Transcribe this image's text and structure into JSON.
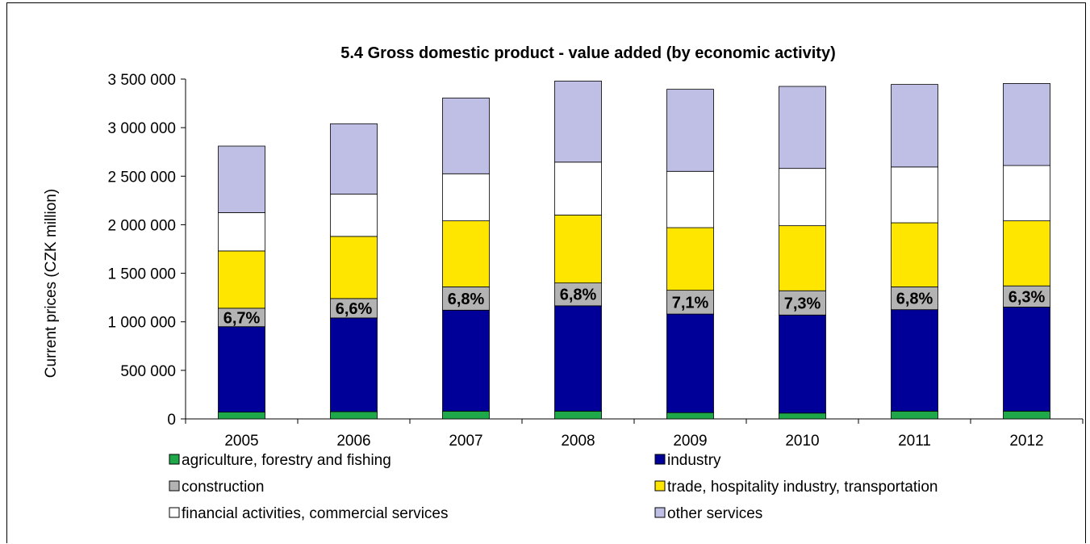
{
  "chart_data": {
    "type": "bar",
    "stacked": true,
    "title": "5.4 Gross domestic product - value added (by economic activity)",
    "ylabel": "Current prices (CZK million)",
    "xlabel": "",
    "ylim": [
      0,
      3500000
    ],
    "yticks": [
      0,
      500000,
      1000000,
      1500000,
      2000000,
      2500000,
      3000000,
      3500000
    ],
    "ytick_labels": [
      "0",
      "500 000",
      "1 000 000",
      "1 500 000",
      "2 000 000",
      "2 500 000",
      "3 000 000",
      "3 500 000"
    ],
    "grid": false,
    "legend_position": "bottom",
    "categories": [
      "2005",
      "2006",
      "2007",
      "2008",
      "2009",
      "2010",
      "2011",
      "2012"
    ],
    "series": [
      {
        "name": "agriculture, forestry and fishing",
        "color": "#1fa84a",
        "values": [
          70000,
          75000,
          80000,
          80000,
          65000,
          60000,
          80000,
          80000
        ]
      },
      {
        "name": "industry",
        "color": "#000099",
        "values": [
          880000,
          965000,
          1040000,
          1085000,
          1015000,
          1010000,
          1045000,
          1072000
        ]
      },
      {
        "name": "construction",
        "color": "#b3b3b3",
        "values": [
          190000,
          200000,
          240000,
          235000,
          245000,
          250000,
          235000,
          218000
        ]
      },
      {
        "name": "trade, hospitality industry, transportation",
        "color": "#ffe600",
        "values": [
          590000,
          640000,
          680000,
          700000,
          645000,
          670000,
          660000,
          670000
        ]
      },
      {
        "name": "financial activities, commercial services",
        "color": "#ffffff",
        "values": [
          395000,
          435000,
          485000,
          545000,
          580000,
          590000,
          575000,
          570000
        ]
      },
      {
        "name": "other services",
        "color": "#bfbfe6",
        "values": [
          685000,
          725000,
          780000,
          835000,
          845000,
          845000,
          850000,
          845000
        ]
      }
    ],
    "annotations": [
      "6,7%",
      "6,6%",
      "6,8%",
      "6,8%",
      "7,1%",
      "7,3%",
      "6,8%",
      "6,3%"
    ]
  }
}
